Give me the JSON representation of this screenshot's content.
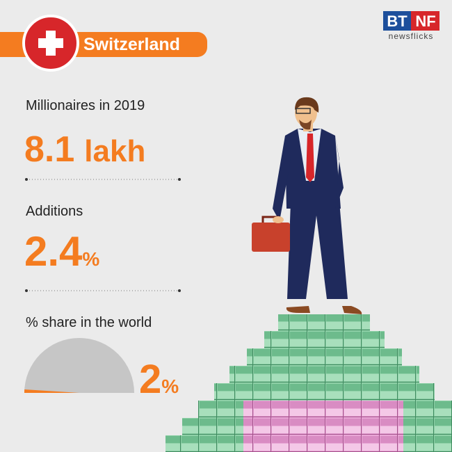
{
  "header": {
    "country": "Switzerland",
    "logo_left": "BT",
    "logo_right": "NF",
    "logo_sub": "newsflicks"
  },
  "stats": [
    {
      "label": "Millionaires in 2019",
      "value": "8.1",
      "unit": "lakh"
    },
    {
      "label": "Additions",
      "value": "2.4",
      "unit": "%"
    }
  ],
  "share": {
    "label": "% share in the world",
    "value": 2,
    "unit": "%"
  }
}
